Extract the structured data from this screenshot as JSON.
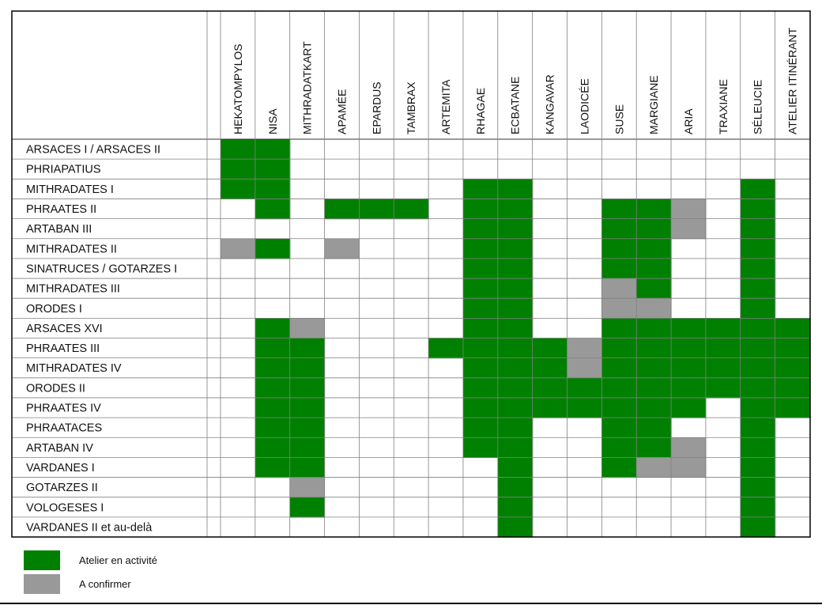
{
  "colors": {
    "active": "#008000",
    "confirm": "#999999",
    "grid": "#808080"
  },
  "chart_data": {
    "type": "heatmap",
    "title": "",
    "columns": [
      "HEKATOMPYLOS",
      "NISA",
      "MITHRADATKART",
      "APAMÉE",
      "EPARDUS",
      "TAMBRAX",
      "ARTEMITA",
      "RHAGAE",
      "ECBATANE",
      "KANGAVAR",
      "LAODICÉE",
      "SUSE",
      "MARGIANE",
      "ARIA",
      "TRAXIANE",
      "SÉLEUCIE",
      "ATELIER ITINÉRANT"
    ],
    "rows": [
      "ARSACES I / ARSACES II",
      "PHRIAPATIUS",
      "MITHRADATES I",
      "PHRAATES II",
      "ARTABAN III",
      "MITHRADATES II",
      "SINATRUCES / GOTARZES I",
      "MITHRADATES III",
      "ORODES I",
      "ARSACES XVI",
      "PHRAATES III",
      "MITHRADATES IV",
      "ORODES II",
      "PHRAATES IV",
      "PHRAATACES",
      "ARTABAN IV",
      "VARDANES I",
      "GOTARZES II",
      "VOLOGESES I",
      "VARDANES II et au-delà"
    ],
    "values": [
      [
        1,
        1,
        0,
        0,
        0,
        0,
        0,
        0,
        0,
        0,
        0,
        0,
        0,
        0,
        0,
        0,
        0
      ],
      [
        1,
        1,
        0,
        0,
        0,
        0,
        0,
        0,
        0,
        0,
        0,
        0,
        0,
        0,
        0,
        0,
        0
      ],
      [
        1,
        1,
        0,
        0,
        0,
        0,
        0,
        1,
        1,
        0,
        0,
        0,
        0,
        0,
        0,
        1,
        0
      ],
      [
        0,
        1,
        0,
        1,
        1,
        1,
        0,
        1,
        1,
        0,
        0,
        1,
        1,
        2,
        0,
        1,
        0
      ],
      [
        0,
        0,
        0,
        0,
        0,
        0,
        0,
        1,
        1,
        0,
        0,
        1,
        1,
        2,
        0,
        1,
        0
      ],
      [
        2,
        1,
        0,
        2,
        0,
        0,
        0,
        1,
        1,
        0,
        0,
        1,
        1,
        0,
        0,
        1,
        0
      ],
      [
        0,
        0,
        0,
        0,
        0,
        0,
        0,
        1,
        1,
        0,
        0,
        1,
        1,
        0,
        0,
        1,
        0
      ],
      [
        0,
        0,
        0,
        0,
        0,
        0,
        0,
        1,
        1,
        0,
        0,
        2,
        1,
        0,
        0,
        1,
        0
      ],
      [
        0,
        0,
        0,
        0,
        0,
        0,
        0,
        1,
        1,
        0,
        0,
        2,
        2,
        0,
        0,
        1,
        0
      ],
      [
        0,
        1,
        2,
        0,
        0,
        0,
        0,
        1,
        1,
        0,
        0,
        1,
        1,
        1,
        1,
        1,
        1
      ],
      [
        0,
        1,
        1,
        0,
        0,
        0,
        1,
        1,
        1,
        1,
        2,
        1,
        1,
        1,
        1,
        1,
        1
      ],
      [
        0,
        1,
        1,
        0,
        0,
        0,
        0,
        1,
        1,
        1,
        2,
        1,
        1,
        1,
        1,
        1,
        1
      ],
      [
        0,
        1,
        1,
        0,
        0,
        0,
        0,
        1,
        1,
        1,
        1,
        1,
        1,
        1,
        1,
        1,
        1
      ],
      [
        0,
        1,
        1,
        0,
        0,
        0,
        0,
        1,
        1,
        1,
        1,
        1,
        1,
        1,
        0,
        1,
        1
      ],
      [
        0,
        1,
        1,
        0,
        0,
        0,
        0,
        1,
        1,
        0,
        0,
        1,
        1,
        0,
        0,
        1,
        0
      ],
      [
        0,
        1,
        1,
        0,
        0,
        0,
        0,
        1,
        1,
        0,
        0,
        1,
        1,
        2,
        0,
        1,
        0
      ],
      [
        0,
        1,
        1,
        0,
        0,
        0,
        0,
        0,
        1,
        0,
        0,
        1,
        2,
        2,
        0,
        1,
        0
      ],
      [
        0,
        0,
        2,
        0,
        0,
        0,
        0,
        0,
        1,
        0,
        0,
        0,
        0,
        0,
        0,
        1,
        0
      ],
      [
        0,
        0,
        1,
        0,
        0,
        0,
        0,
        0,
        1,
        0,
        0,
        0,
        0,
        0,
        0,
        1,
        0
      ],
      [
        0,
        0,
        0,
        0,
        0,
        0,
        0,
        0,
        1,
        0,
        0,
        0,
        0,
        0,
        0,
        1,
        0
      ]
    ],
    "legend": [
      {
        "label": "Atelier en activité",
        "value": 1
      },
      {
        "label": "A confirmer",
        "value": 2
      }
    ],
    "legend_position": "bottom-left",
    "grid": true
  }
}
